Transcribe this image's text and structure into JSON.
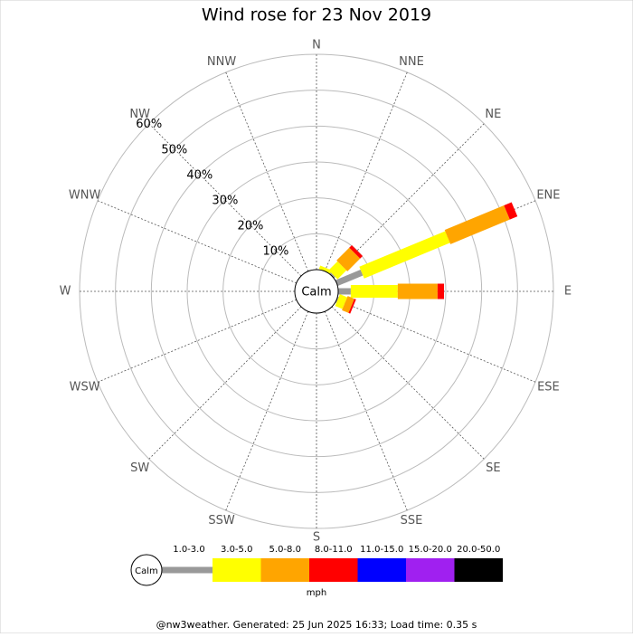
{
  "chart_data": {
    "type": "windrose",
    "title": "Wind rose for 23 Nov 2019",
    "categories": [
      "N",
      "NNE",
      "NE",
      "ENE",
      "E",
      "ESE",
      "SE",
      "SSE",
      "S",
      "SSW",
      "SW",
      "WSW",
      "W",
      "WNW",
      "NW",
      "NNW"
    ],
    "calm_label": "Calm",
    "unit": "mph",
    "ylim": [
      0,
      60
    ],
    "yticks": [
      {
        "value": 10,
        "label": "10%"
      },
      {
        "value": 20,
        "label": "20%"
      },
      {
        "value": 30,
        "label": "30%"
      },
      {
        "value": 40,
        "label": "40%"
      },
      {
        "value": 50,
        "label": "50%"
      },
      {
        "value": 60,
        "label": "60%"
      }
    ],
    "series": [
      {
        "name": "1.0-3.0",
        "color": "#999999",
        "values": [
          0,
          0,
          0.5,
          7.6,
          3.5,
          0.3,
          0,
          0,
          0,
          0,
          0,
          0,
          0,
          0,
          0,
          0
        ]
      },
      {
        "name": "3.0-5.0",
        "color": "#ffff00",
        "values": [
          0,
          1.0,
          3.5,
          25.9,
          13.1,
          2.2,
          0,
          0,
          0,
          0,
          0,
          0,
          0,
          0,
          0,
          0
        ]
      },
      {
        "name": "5.0-8.0",
        "color": "#ffa500",
        "values": [
          0,
          0,
          5.0,
          17.9,
          11.1,
          2.0,
          0,
          0,
          0,
          0,
          0,
          0,
          0,
          0,
          0,
          0
        ]
      },
      {
        "name": "8.0-11.0",
        "color": "#ff0000",
        "values": [
          0,
          0,
          1.0,
          2.3,
          1.8,
          0.5,
          0,
          0,
          0,
          0,
          0,
          0,
          0,
          0,
          0,
          0
        ]
      },
      {
        "name": "11.0-15.0",
        "color": "#0000ff",
        "values": [
          0,
          0,
          0,
          0,
          0,
          0,
          0,
          0,
          0,
          0,
          0,
          0,
          0,
          0,
          0,
          0
        ]
      },
      {
        "name": "15.0-20.0",
        "color": "#a020f0",
        "values": [
          0,
          0,
          0,
          0,
          0,
          0,
          0,
          0,
          0,
          0,
          0,
          0,
          0,
          0,
          0,
          0
        ]
      },
      {
        "name": "20.0-50.0",
        "color": "#000000",
        "values": [
          0,
          0,
          0,
          0,
          0,
          0,
          0,
          0,
          0,
          0,
          0,
          0,
          0,
          0,
          0,
          0
        ]
      }
    ],
    "footer": "@nw3weather. Generated: 25 Jun 2025 16:33; Load time: 0.35 s"
  }
}
